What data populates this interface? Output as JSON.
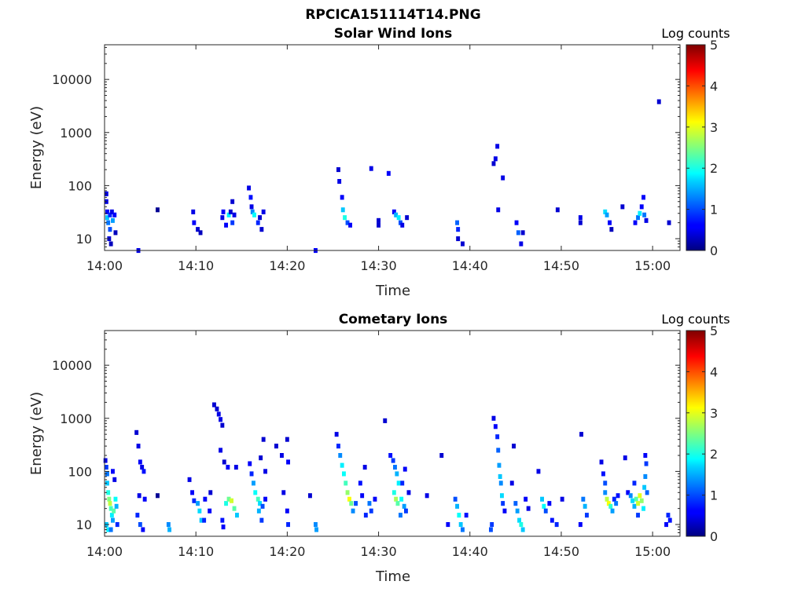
{
  "figure": {
    "title": "RPCICA151114T14.PNG"
  },
  "colorbar_ticks": [
    "0",
    "1",
    "2",
    "3",
    "4",
    "5"
  ],
  "chart_data": [
    {
      "type": "heatmap",
      "title": "Solar Wind Ions",
      "xlabel": "Time",
      "ylabel": "Energy (eV)",
      "yscale": "log",
      "ylim": [
        6,
        45000
      ],
      "xlim": [
        "14:00",
        "15:03"
      ],
      "x_ticks": [
        "14:00",
        "14:10",
        "14:20",
        "14:30",
        "14:40",
        "14:50",
        "15:00"
      ],
      "y_ticks": [
        "10",
        "100",
        "1000",
        "10000"
      ],
      "colorbar": {
        "label": "Log counts",
        "range": [
          0,
          5
        ],
        "colormap": "jet"
      },
      "cells": [
        [
          0.2,
          70,
          0.5
        ],
        [
          0.2,
          50,
          0.5
        ],
        [
          0.3,
          32,
          0.6
        ],
        [
          0.3,
          25,
          1.6
        ],
        [
          0.4,
          20,
          1.2
        ],
        [
          0.6,
          28,
          0.8
        ],
        [
          0.6,
          15,
          1.0
        ],
        [
          0.8,
          32,
          0.5
        ],
        [
          0.9,
          22,
          1.4
        ],
        [
          1.1,
          28,
          0.6
        ],
        [
          1.2,
          13,
          0.3
        ],
        [
          0.5,
          10,
          0.4
        ],
        [
          0.7,
          8,
          0.3
        ],
        [
          3.7,
          6,
          0.5
        ],
        [
          9.7,
          32,
          0.5
        ],
        [
          9.8,
          20,
          0.6
        ],
        [
          10.2,
          15,
          0.4
        ],
        [
          10.5,
          13,
          0.3
        ],
        [
          12.9,
          25,
          0.5
        ],
        [
          13.3,
          18,
          0.6
        ],
        [
          13.6,
          28,
          1.8
        ],
        [
          13.8,
          32,
          0.4
        ],
        [
          14.0,
          20,
          0.9
        ],
        [
          14.0,
          50,
          0.4
        ],
        [
          13.0,
          32,
          0.6
        ],
        [
          14.2,
          28,
          0.5
        ],
        [
          15.8,
          90,
          0.5
        ],
        [
          16.0,
          60,
          0.7
        ],
        [
          16.2,
          32,
          1.3
        ],
        [
          16.4,
          28,
          1.9
        ],
        [
          16.8,
          20,
          0.8
        ],
        [
          17.0,
          25,
          0.4
        ],
        [
          17.4,
          32,
          0.5
        ],
        [
          17.2,
          15,
          0.4
        ],
        [
          16.1,
          40,
          0.5
        ],
        [
          23.1,
          6,
          0.6
        ],
        [
          25.6,
          200,
          0.4
        ],
        [
          25.7,
          120,
          0.5
        ],
        [
          26.0,
          60,
          0.6
        ],
        [
          26.1,
          35,
          1.6
        ],
        [
          26.3,
          25,
          2.0
        ],
        [
          26.6,
          20,
          1.0
        ],
        [
          26.9,
          18,
          0.6
        ],
        [
          29.2,
          210,
          0.5
        ],
        [
          31.1,
          170,
          0.6
        ],
        [
          30.0,
          18,
          0.4
        ],
        [
          30.0,
          22,
          0.4
        ],
        [
          31.7,
          32,
          0.6
        ],
        [
          31.9,
          28,
          1.5
        ],
        [
          32.2,
          25,
          1.8
        ],
        [
          32.4,
          20,
          1.0
        ],
        [
          32.6,
          18,
          0.5
        ],
        [
          33.1,
          25,
          0.4
        ],
        [
          38.6,
          20,
          1.1
        ],
        [
          38.7,
          15,
          0.8
        ],
        [
          38.7,
          10,
          0.4
        ],
        [
          39.2,
          8,
          0.4
        ],
        [
          42.6,
          260,
          0.4
        ],
        [
          42.8,
          320,
          0.5
        ],
        [
          43.0,
          550,
          0.5
        ],
        [
          43.6,
          140,
          0.5
        ],
        [
          43.1,
          35,
          0.5
        ],
        [
          45.1,
          20,
          0.6
        ],
        [
          45.3,
          13,
          1.1
        ],
        [
          45.6,
          8,
          0.5
        ],
        [
          45.8,
          13,
          0.4
        ],
        [
          49.6,
          35,
          0.4
        ],
        [
          52.1,
          25,
          0.5
        ],
        [
          52.1,
          20,
          0.4
        ],
        [
          54.8,
          32,
          1.7
        ],
        [
          55.0,
          28,
          1.4
        ],
        [
          55.3,
          20,
          0.6
        ],
        [
          55.5,
          15,
          0.3
        ],
        [
          56.7,
          40,
          0.4
        ],
        [
          58.1,
          20,
          0.6
        ],
        [
          58.4,
          25,
          1.2
        ],
        [
          58.6,
          30,
          1.8
        ],
        [
          58.8,
          40,
          0.6
        ],
        [
          59.0,
          60,
          0.6
        ],
        [
          59.1,
          28,
          1.2
        ],
        [
          59.3,
          22,
          0.5
        ],
        [
          60.7,
          3800,
          0.4
        ],
        [
          61.8,
          20,
          0.4
        ],
        [
          5.8,
          35,
          0.1
        ]
      ]
    },
    {
      "type": "heatmap",
      "title": "Cometary Ions",
      "xlabel": "Time",
      "ylabel": "Energy (eV)",
      "yscale": "log",
      "ylim": [
        6,
        45000
      ],
      "xlim": [
        "14:00",
        "15:03"
      ],
      "x_ticks": [
        "14:00",
        "14:10",
        "14:20",
        "14:30",
        "14:40",
        "14:50",
        "15:00"
      ],
      "y_ticks": [
        "10",
        "100",
        "1000",
        "10000"
      ],
      "colorbar": {
        "label": "Log counts",
        "range": [
          0,
          5
        ],
        "colormap": "jet"
      },
      "cells": [
        [
          0.1,
          160,
          0.5
        ],
        [
          0.2,
          120,
          0.9
        ],
        [
          0.3,
          90,
          1.2
        ],
        [
          0.3,
          60,
          1.6
        ],
        [
          0.4,
          40,
          2.0
        ],
        [
          0.5,
          30,
          2.5
        ],
        [
          0.6,
          25,
          2.8
        ],
        [
          0.7,
          20,
          2.2
        ],
        [
          0.8,
          15,
          1.8
        ],
        [
          0.9,
          12,
          1.4
        ],
        [
          1.0,
          18,
          2.3
        ],
        [
          1.2,
          30,
          1.9
        ],
        [
          1.3,
          22,
          1.5
        ],
        [
          1.1,
          70,
          0.5
        ],
        [
          0.9,
          100,
          0.6
        ],
        [
          0.2,
          10,
          1.6
        ],
        [
          0.4,
          8,
          1.8
        ],
        [
          0.7,
          8,
          1.2
        ],
        [
          1.4,
          10,
          0.8
        ],
        [
          3.5,
          540,
          0.4
        ],
        [
          3.7,
          300,
          0.5
        ],
        [
          3.9,
          150,
          0.6
        ],
        [
          4.1,
          120,
          0.5
        ],
        [
          4.3,
          100,
          0.7
        ],
        [
          3.8,
          35,
          0.5
        ],
        [
          4.4,
          30,
          0.6
        ],
        [
          3.6,
          15,
          0.8
        ],
        [
          3.9,
          10,
          1.0
        ],
        [
          4.2,
          8,
          0.6
        ],
        [
          7.0,
          10,
          1.3
        ],
        [
          7.1,
          8,
          1.5
        ],
        [
          9.3,
          70,
          0.5
        ],
        [
          9.6,
          40,
          0.6
        ],
        [
          9.8,
          28,
          0.8
        ],
        [
          10.2,
          25,
          1.4
        ],
        [
          10.4,
          18,
          1.7
        ],
        [
          10.6,
          12,
          1.6
        ],
        [
          11.0,
          30,
          0.6
        ],
        [
          10.9,
          12,
          0.8
        ],
        [
          11.6,
          40,
          0.4
        ],
        [
          11.5,
          18,
          0.6
        ],
        [
          12.0,
          1800,
          0.4
        ],
        [
          12.3,
          1500,
          0.4
        ],
        [
          12.5,
          1200,
          0.5
        ],
        [
          12.7,
          950,
          0.5
        ],
        [
          12.9,
          740,
          0.4
        ],
        [
          12.7,
          250,
          0.5
        ],
        [
          13.1,
          150,
          0.4
        ],
        [
          13.5,
          120,
          0.6
        ],
        [
          13.3,
          25,
          2.0
        ],
        [
          13.6,
          30,
          2.4
        ],
        [
          13.9,
          28,
          2.9
        ],
        [
          14.2,
          20,
          2.3
        ],
        [
          14.5,
          15,
          1.6
        ],
        [
          14.4,
          120,
          0.5
        ],
        [
          12.9,
          12,
          0.7
        ],
        [
          13.0,
          9,
          0.6
        ],
        [
          15.9,
          140,
          0.6
        ],
        [
          16.1,
          90,
          0.8
        ],
        [
          16.3,
          60,
          1.4
        ],
        [
          16.5,
          40,
          1.9
        ],
        [
          16.8,
          30,
          2.2
        ],
        [
          17.0,
          25,
          1.7
        ],
        [
          17.3,
          22,
          1.0
        ],
        [
          17.6,
          30,
          0.6
        ],
        [
          16.9,
          18,
          1.5
        ],
        [
          17.2,
          12,
          0.9
        ],
        [
          17.4,
          400,
          0.4
        ],
        [
          17.1,
          180,
          0.4
        ],
        [
          17.6,
          100,
          0.5
        ],
        [
          18.8,
          300,
          0.4
        ],
        [
          19.4,
          200,
          0.5
        ],
        [
          20.1,
          150,
          0.6
        ],
        [
          20.0,
          400,
          0.4
        ],
        [
          19.6,
          40,
          0.5
        ],
        [
          20.0,
          18,
          0.6
        ],
        [
          20.1,
          10,
          0.8
        ],
        [
          22.5,
          35,
          0.4
        ],
        [
          23.1,
          10,
          1.3
        ],
        [
          23.2,
          8,
          1.4
        ],
        [
          25.4,
          500,
          0.5
        ],
        [
          25.6,
          300,
          0.8
        ],
        [
          25.8,
          200,
          1.3
        ],
        [
          26.0,
          130,
          1.8
        ],
        [
          26.2,
          90,
          1.9
        ],
        [
          26.4,
          60,
          2.2
        ],
        [
          26.6,
          40,
          2.6
        ],
        [
          26.8,
          30,
          3.1
        ],
        [
          27.0,
          25,
          2.4
        ],
        [
          27.2,
          18,
          1.3
        ],
        [
          27.5,
          25,
          1.0
        ],
        [
          28.0,
          60,
          0.7
        ],
        [
          28.2,
          35,
          0.6
        ],
        [
          28.5,
          120,
          0.5
        ],
        [
          28.6,
          15,
          0.8
        ],
        [
          29.0,
          25,
          1.2
        ],
        [
          29.2,
          18,
          0.9
        ],
        [
          29.6,
          30,
          0.6
        ],
        [
          30.7,
          900,
          0.4
        ],
        [
          31.3,
          200,
          0.7
        ],
        [
          31.6,
          160,
          0.9
        ],
        [
          31.8,
          120,
          1.2
        ],
        [
          32.0,
          90,
          1.5
        ],
        [
          32.2,
          60,
          1.8
        ],
        [
          31.7,
          40,
          2.0
        ],
        [
          31.9,
          30,
          2.7
        ],
        [
          32.1,
          25,
          2.3
        ],
        [
          32.5,
          30,
          1.9
        ],
        [
          32.8,
          22,
          1.4
        ],
        [
          33.0,
          18,
          0.9
        ],
        [
          32.6,
          60,
          0.8
        ],
        [
          32.9,
          110,
          0.6
        ],
        [
          33.3,
          40,
          0.5
        ],
        [
          32.4,
          15,
          1.2
        ],
        [
          35.3,
          35,
          0.5
        ],
        [
          36.9,
          200,
          0.4
        ],
        [
          37.6,
          10,
          0.6
        ],
        [
          38.4,
          30,
          1.0
        ],
        [
          38.6,
          22,
          1.5
        ],
        [
          38.8,
          15,
          1.9
        ],
        [
          39.0,
          10,
          1.6
        ],
        [
          39.2,
          8,
          1.2
        ],
        [
          39.6,
          15,
          0.7
        ],
        [
          42.3,
          8,
          1.0
        ],
        [
          42.4,
          10,
          0.9
        ],
        [
          42.6,
          1000,
          0.5
        ],
        [
          42.8,
          700,
          0.6
        ],
        [
          43.0,
          450,
          0.8
        ],
        [
          43.1,
          250,
          1.1
        ],
        [
          43.2,
          130,
          1.4
        ],
        [
          43.3,
          80,
          1.6
        ],
        [
          43.4,
          60,
          1.3
        ],
        [
          43.5,
          35,
          1.7
        ],
        [
          43.6,
          25,
          0.9
        ],
        [
          43.8,
          18,
          0.6
        ],
        [
          44.6,
          60,
          0.5
        ],
        [
          45.0,
          25,
          1.1
        ],
        [
          45.2,
          18,
          1.4
        ],
        [
          45.4,
          12,
          1.7
        ],
        [
          45.6,
          10,
          2.0
        ],
        [
          45.8,
          8,
          1.6
        ],
        [
          46.1,
          30,
          0.6
        ],
        [
          46.4,
          20,
          0.5
        ],
        [
          44.8,
          300,
          0.4
        ],
        [
          47.5,
          100,
          0.5
        ],
        [
          47.9,
          30,
          1.6
        ],
        [
          48.1,
          22,
          1.9
        ],
        [
          48.3,
          18,
          1.0
        ],
        [
          48.7,
          25,
          0.6
        ],
        [
          49.0,
          12,
          0.7
        ],
        [
          49.5,
          10,
          0.8
        ],
        [
          50.1,
          30,
          0.5
        ],
        [
          52.2,
          500,
          0.4
        ],
        [
          52.4,
          30,
          1.2
        ],
        [
          52.6,
          22,
          1.5
        ],
        [
          52.8,
          15,
          0.9
        ],
        [
          52.1,
          10,
          0.6
        ],
        [
          54.4,
          150,
          0.5
        ],
        [
          54.6,
          90,
          0.7
        ],
        [
          54.8,
          60,
          1.0
        ],
        [
          54.8,
          40,
          1.3
        ],
        [
          55.0,
          30,
          2.8
        ],
        [
          55.2,
          25,
          3.1
        ],
        [
          55.4,
          22,
          2.1
        ],
        [
          55.6,
          18,
          1.4
        ],
        [
          55.8,
          30,
          0.8
        ],
        [
          56.2,
          35,
          0.7
        ],
        [
          56.0,
          25,
          1.2
        ],
        [
          57.0,
          180,
          0.5
        ],
        [
          57.3,
          40,
          0.6
        ],
        [
          57.6,
          35,
          1.3
        ],
        [
          57.8,
          28,
          1.7
        ],
        [
          58.0,
          22,
          1.5
        ],
        [
          58.2,
          30,
          2.3
        ],
        [
          58.4,
          25,
          2.9
        ],
        [
          58.6,
          35,
          3.0
        ],
        [
          58.8,
          28,
          2.6
        ],
        [
          59.0,
          20,
          1.8
        ],
        [
          59.1,
          50,
          1.6
        ],
        [
          59.2,
          80,
          1.3
        ],
        [
          59.3,
          140,
          0.9
        ],
        [
          59.2,
          200,
          0.6
        ],
        [
          58.0,
          60,
          0.8
        ],
        [
          59.4,
          40,
          1.1
        ],
        [
          58.4,
          15,
          0.9
        ],
        [
          61.5,
          10,
          0.6
        ],
        [
          61.7,
          15,
          0.8
        ],
        [
          61.9,
          12,
          0.7
        ],
        [
          5.8,
          35,
          0.1
        ]
      ]
    }
  ]
}
